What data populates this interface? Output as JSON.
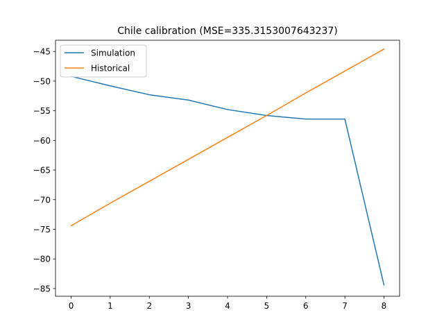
{
  "chart_data": {
    "type": "line",
    "title": "Chile calibration (MSE=335.3153007643237)",
    "xlabel": "",
    "ylabel": "",
    "x": [
      0,
      1,
      2,
      3,
      4,
      5,
      6,
      7,
      8
    ],
    "xlim": [
      -0.4,
      8.4
    ],
    "ylim": [
      -86.3,
      -43.1
    ],
    "xticks": [
      0,
      1,
      2,
      3,
      4,
      5,
      6,
      7,
      8
    ],
    "yticks": [
      -45,
      -50,
      -55,
      -60,
      -65,
      -70,
      -75,
      -80,
      -85
    ],
    "grid": false,
    "legend_position": "upper-left",
    "series": [
      {
        "name": "Simulation",
        "color": "#1f77b4",
        "values": [
          -49.2,
          -50.8,
          -52.3,
          -53.2,
          -54.8,
          -55.8,
          -56.4,
          -56.4,
          -84.4
        ]
      },
      {
        "name": "Historical",
        "color": "#ff7f0e",
        "values": [
          -74.4,
          -70.6,
          -66.9,
          -63.2,
          -59.5,
          -55.8,
          -52.0,
          -48.3,
          -44.6
        ]
      }
    ]
  }
}
